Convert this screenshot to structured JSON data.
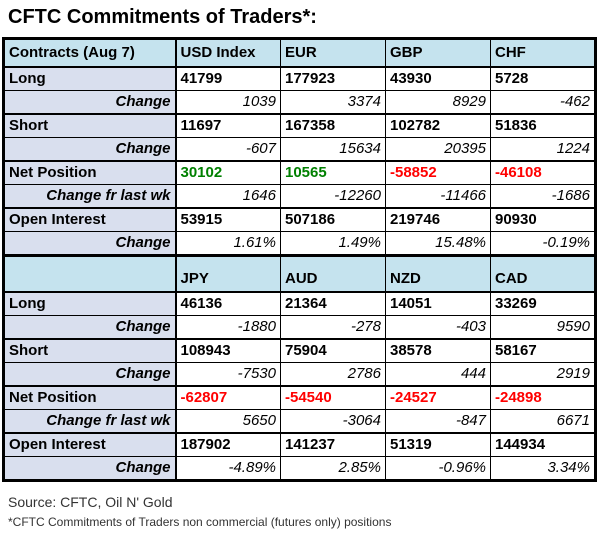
{
  "title": "CFTC Commitments of Traders*:",
  "colors": {
    "header_bg": "#c5e3ee",
    "label_bg": "#d9dfee",
    "positive": "#008000",
    "negative": "#ff0000"
  },
  "footer": {
    "source": "Source: CFTC, Oil N' Gold",
    "footnote": "*CFTC Commitments of Traders non commercial (futures only) positions"
  },
  "chart_data": {
    "type": "table",
    "title": "CFTC Commitments of Traders*:",
    "sections": [
      {
        "header_label": "Contracts (Aug 7)",
        "columns": [
          "USD Index",
          "EUR",
          "GBP",
          "CHF"
        ],
        "rows": [
          {
            "label": "Long",
            "style": "main",
            "values": [
              "41799",
              "177923",
              "43930",
              "5728"
            ]
          },
          {
            "label": "Change",
            "style": "change",
            "values": [
              "1039",
              "3374",
              "8929",
              "-462"
            ]
          },
          {
            "label": "Short",
            "style": "main",
            "values": [
              "11697",
              "167358",
              "102782",
              "51836"
            ]
          },
          {
            "label": "Change",
            "style": "change",
            "values": [
              "-607",
              "15634",
              "20395",
              "1224"
            ]
          },
          {
            "label": "Net Position",
            "style": "main",
            "values": [
              "30102",
              "10565",
              "-58852",
              "-46108"
            ],
            "value_colors": [
              "#008000",
              "#008000",
              "#ff0000",
              "#ff0000"
            ]
          },
          {
            "label": "Change fr last wk",
            "style": "changefr",
            "values": [
              "1646",
              "-12260",
              "-11466",
              "-1686"
            ]
          },
          {
            "label": "Open Interest",
            "style": "main",
            "values": [
              "53915",
              "507186",
              "219746",
              "90930"
            ]
          },
          {
            "label": "Change",
            "style": "change",
            "values": [
              "1.61%",
              "1.49%",
              "15.48%",
              "-0.19%"
            ]
          }
        ]
      },
      {
        "header_label": "",
        "columns": [
          "JPY",
          "AUD",
          "NZD",
          "CAD"
        ],
        "rows": [
          {
            "label": "Long",
            "style": "main",
            "values": [
              "46136",
              "21364",
              "14051",
              "33269"
            ]
          },
          {
            "label": "Change",
            "style": "change",
            "values": [
              "-1880",
              "-278",
              "-403",
              "9590"
            ]
          },
          {
            "label": "Short",
            "style": "main",
            "values": [
              "108943",
              "75904",
              "38578",
              "58167"
            ]
          },
          {
            "label": "Change",
            "style": "change",
            "values": [
              "-7530",
              "2786",
              "444",
              "2919"
            ]
          },
          {
            "label": "Net Position",
            "style": "main",
            "values": [
              "-62807",
              "-54540",
              "-24527",
              "-24898"
            ],
            "value_colors": [
              "#ff0000",
              "#ff0000",
              "#ff0000",
              "#ff0000"
            ]
          },
          {
            "label": "Change fr last wk",
            "style": "changefr",
            "values": [
              "5650",
              "-3064",
              "-847",
              "6671"
            ]
          },
          {
            "label": "Open Interest",
            "style": "main",
            "values": [
              "187902",
              "141237",
              "51319",
              "144934"
            ]
          },
          {
            "label": "Change",
            "style": "change",
            "values": [
              "-4.89%",
              "2.85%",
              "-0.96%",
              "3.34%"
            ]
          }
        ]
      }
    ]
  }
}
